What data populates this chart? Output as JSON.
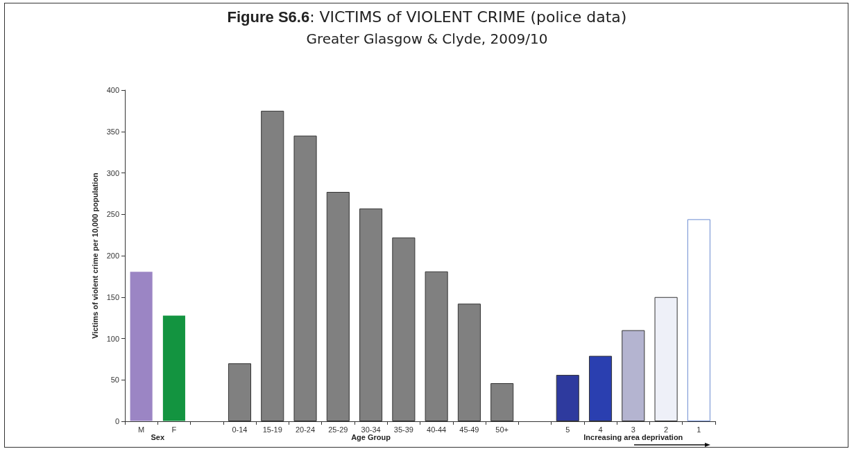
{
  "chart_data": {
    "type": "bar",
    "title": "Figure S6.6: VICTIMS of VIOLENT CRIME (police data)",
    "subtitle": "Greater Glasgow & Clyde, 2009/10",
    "ylabel": "Victims of violent crime per 10,000 population",
    "categories": [
      "M",
      "F",
      null,
      "0-14",
      "15-19",
      "20-24",
      "25-29",
      "30-34",
      "35-39",
      "40-44",
      "45-49",
      "50+",
      null,
      "5",
      "4",
      "3",
      "2",
      "1"
    ],
    "values": [
      181,
      128,
      null,
      70,
      375,
      345,
      277,
      257,
      222,
      181,
      142,
      46,
      null,
      56,
      79,
      110,
      150,
      244
    ],
    "colors": [
      "#9b85c4",
      "#139440",
      "#808080",
      "#808080",
      "#808080",
      "#808080",
      "#808080",
      "#808080",
      "#808080",
      "#808080",
      "#808080",
      "#808080",
      "#808080",
      "#2e3a9e",
      "#2a3fb0",
      "#b4b4d0",
      "#eef0f8",
      "#ffffff"
    ],
    "annotations": [
      "Sex",
      "Age Group",
      "Increasing area deprivation"
    ],
    "ylim": [
      0,
      400
    ],
    "yticks": [
      0,
      50,
      100,
      150,
      200,
      250,
      300,
      350,
      400
    ]
  }
}
